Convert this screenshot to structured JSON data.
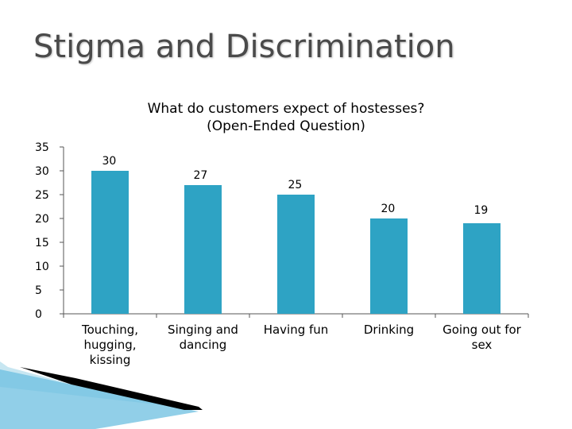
{
  "slide": {
    "title": "Stigma and Discrimination"
  },
  "colors": {
    "bar": "#2ea3c4",
    "axis": "#555555",
    "title_text": "#4a4a4a"
  },
  "chart_data": {
    "type": "bar",
    "title": "What do customers expect of hostesses?",
    "subtitle": "(Open-Ended Question)",
    "categories": [
      "Touching, hugging, kissing",
      "Singing and dancing",
      "Having fun",
      "Drinking",
      "Going out for sex"
    ],
    "category_lines": [
      [
        "Touching,",
        "hugging,",
        "kissing"
      ],
      [
        "Singing and",
        "dancing"
      ],
      [
        "Having fun"
      ],
      [
        "Drinking"
      ],
      [
        "Going out for",
        "sex"
      ]
    ],
    "values": [
      30,
      27,
      25,
      20,
      19
    ],
    "ylim": [
      0,
      35
    ],
    "yticks": [
      0,
      5,
      10,
      15,
      20,
      25,
      30,
      35
    ],
    "xlabel": "",
    "ylabel": "",
    "grid": false,
    "legend": "none"
  }
}
